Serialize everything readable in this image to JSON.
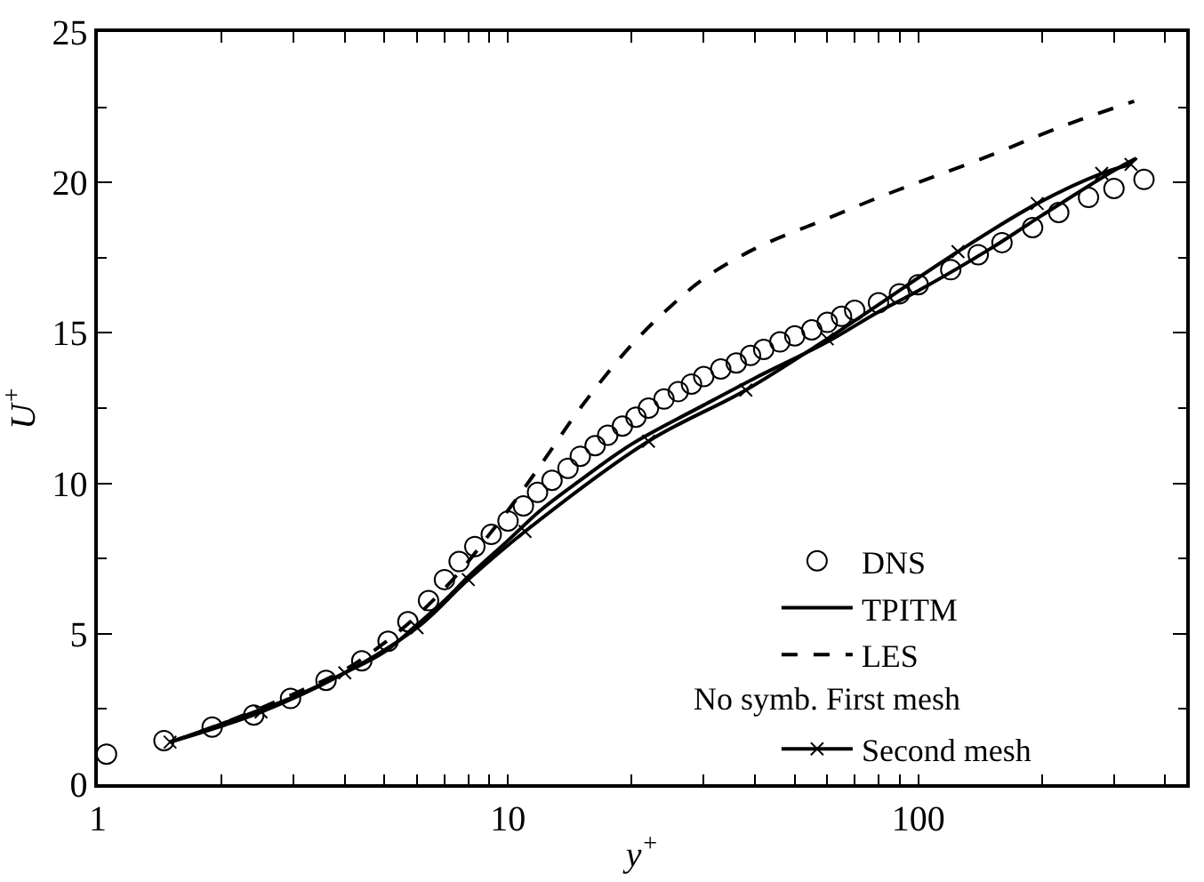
{
  "chart_data": {
    "type": "line",
    "xlabel": "y$^{+}$",
    "ylabel": "U$^{+}$",
    "log": "x",
    "xlim": [
      1,
      450
    ],
    "xticks": [
      1,
      {
        "value": 2,
        "label": null
      },
      {
        "value": 3,
        "label": null
      },
      {
        "value": 4,
        "label": null
      },
      {
        "value": 5,
        "label": null
      },
      {
        "value": 6,
        "label": null
      },
      {
        "value": 7,
        "label": null
      },
      {
        "value": 8,
        "label": null
      },
      {
        "value": 9,
        "label": null
      },
      10,
      {
        "value": 20,
        "label": null
      },
      {
        "value": 30,
        "label": null
      },
      {
        "value": 40,
        "label": null
      },
      {
        "value": 50,
        "label": null
      },
      {
        "value": 60,
        "label": null
      },
      {
        "value": 70,
        "label": null
      },
      {
        "value": 80,
        "label": null
      },
      {
        "value": 90,
        "label": null
      },
      100,
      {
        "value": 200,
        "label": null
      },
      {
        "value": 300,
        "label": null
      },
      {
        "value": 400,
        "label": null
      }
    ],
    "ylim": [
      0,
      25
    ],
    "yticks": [
      0,
      5,
      10,
      15,
      20,
      25
    ],
    "legend": "bottom right",
    "annotations": [
      "No symb. First mesh"
    ],
    "series": [
      {
        "name": "DNS",
        "type": "scatter",
        "marker": "circle",
        "color": "#000000",
        "x": [
          1.05,
          1.45,
          1.9,
          2.4,
          2.95,
          3.6,
          4.4,
          5.1,
          5.7,
          6.4,
          7.0,
          7.6,
          8.3,
          9.1,
          10,
          10.9,
          11.8,
          12.8,
          14,
          15,
          16.3,
          17.5,
          19,
          20.5,
          22,
          24,
          26,
          28,
          30,
          33,
          36,
          39,
          42,
          46,
          50,
          55,
          60,
          65,
          70,
          80,
          90,
          100,
          120,
          140,
          160,
          190,
          220,
          260,
          300,
          355
        ],
        "values": [
          1.0,
          1.45,
          1.9,
          2.3,
          2.85,
          3.45,
          4.1,
          4.75,
          5.4,
          6.1,
          6.8,
          7.4,
          7.9,
          8.3,
          8.75,
          9.25,
          9.7,
          10.1,
          10.5,
          10.9,
          11.25,
          11.6,
          11.9,
          12.2,
          12.5,
          12.8,
          13.05,
          13.3,
          13.55,
          13.8,
          14.0,
          14.25,
          14.45,
          14.7,
          14.9,
          15.1,
          15.35,
          15.55,
          15.75,
          16.0,
          16.3,
          16.6,
          17.1,
          17.6,
          18.0,
          18.5,
          19.0,
          19.5,
          19.8,
          20.1
        ]
      },
      {
        "name": "TPITM",
        "line_style": "solid",
        "color": "#000000",
        "x": [
          1.5,
          2,
          3,
          4,
          5,
          6,
          7,
          8,
          10,
          12,
          15,
          20,
          30,
          40,
          60,
          80,
          100,
          150,
          200,
          300,
          340
        ],
        "values": [
          1.4,
          2.0,
          2.9,
          3.7,
          4.4,
          5.3,
          6.1,
          6.9,
          8.1,
          9.1,
          10.1,
          11.3,
          12.6,
          13.5,
          14.7,
          15.7,
          16.4,
          17.8,
          18.9,
          20.4,
          20.8
        ]
      },
      {
        "name": "LES",
        "line_style": "dashed",
        "color": "#000000",
        "x": [
          1.5,
          2,
          3,
          4,
          5,
          6,
          7,
          8,
          9,
          10,
          12,
          15,
          20,
          25,
          30,
          40,
          60,
          80,
          100,
          150,
          200,
          250,
          336
        ],
        "values": [
          1.4,
          2.0,
          3.0,
          3.8,
          4.7,
          5.6,
          6.5,
          7.4,
          8.3,
          9.1,
          10.6,
          12.5,
          14.6,
          15.9,
          16.8,
          17.8,
          18.8,
          19.5,
          20.0,
          20.9,
          21.6,
          22.1,
          22.7
        ]
      },
      {
        "name": "Second mesh",
        "marker": "cross",
        "line_style": "solid",
        "color": "#000000",
        "x": [
          1.5,
          2.5,
          4,
          6,
          8,
          11,
          22,
          38,
          60,
          125,
          195,
          280,
          330
        ],
        "values": [
          1.4,
          2.4,
          3.7,
          5.2,
          6.8,
          8.4,
          11.4,
          13.1,
          14.8,
          17.7,
          19.3,
          20.3,
          20.6
        ]
      }
    ]
  }
}
